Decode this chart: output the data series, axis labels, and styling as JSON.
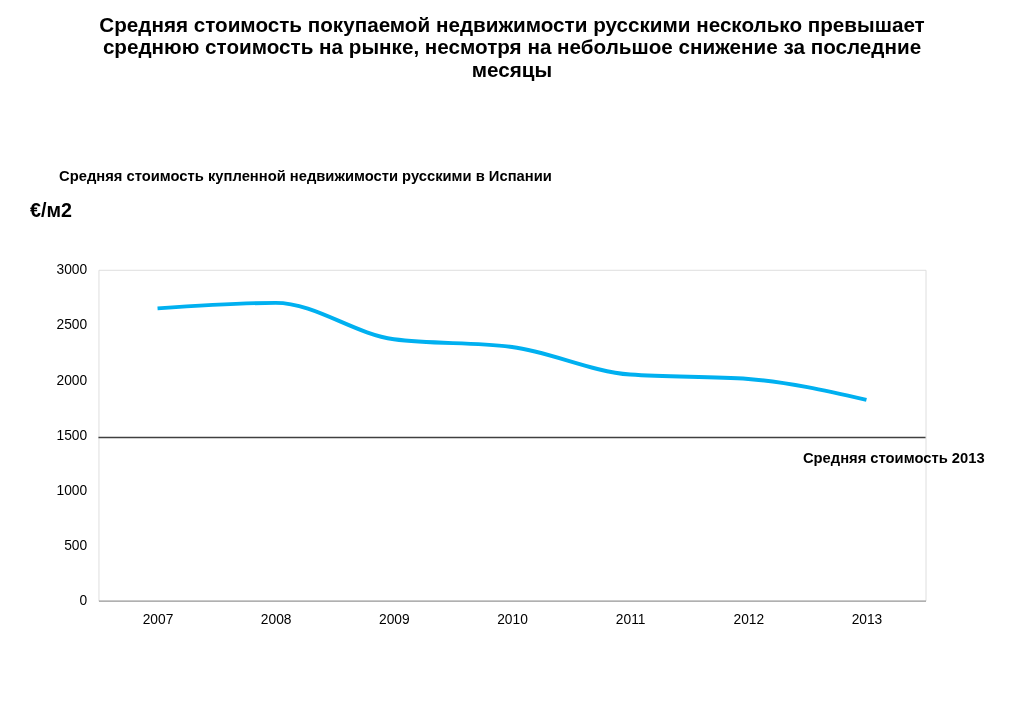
{
  "chart_data": {
    "type": "line",
    "title": "Средняя стоимость покупаемой недвижимости русскими несколько превышает среднюю стоимость на рынке, несмотря на небольшое снижение за последние месяцы",
    "subtitle": "Средняя  стоимость купленной  недвижимости  русскими в Испании",
    "ylabel": "€/м2",
    "categories": [
      "2007",
      "2008",
      "2009",
      "2010",
      "2011",
      "2012",
      "2013"
    ],
    "series": [
      {
        "color": "#00b0f0",
        "values": [
          2650,
          2700,
          2370,
          2300,
          2050,
          2010,
          1820
        ]
      }
    ],
    "ylim": [
      0,
      3000
    ],
    "yticks": [
      0,
      500,
      1000,
      1500,
      2000,
      2500,
      3000
    ],
    "ref_lines": [
      {
        "axis": "y",
        "value": 1480,
        "label": "Средняя  стоимость 2013",
        "color": "#404040"
      }
    ],
    "grid": false,
    "marker": "none",
    "line_style": "solid"
  }
}
